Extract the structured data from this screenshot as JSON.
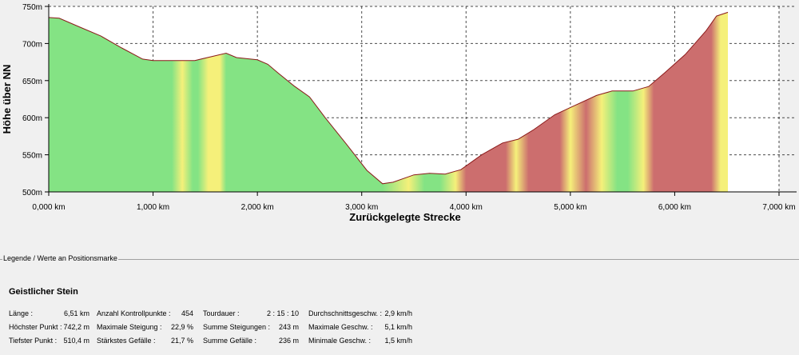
{
  "chart_data": {
    "type": "area",
    "xlabel": "Zurückgelegte Strecke",
    "ylabel": "Höhe über NN",
    "xlim": [
      0,
      7000
    ],
    "ylim": [
      500,
      750
    ],
    "x_ticks": [
      0,
      1000,
      2000,
      3000,
      4000,
      5000,
      6000,
      7000
    ],
    "x_tick_labels": [
      "0,000 km",
      "1,000 km",
      "2,000 km",
      "3,000 km",
      "4,000 km",
      "5,000 km",
      "6,000 km",
      "7,000 km"
    ],
    "y_ticks": [
      500,
      550,
      600,
      650,
      700,
      750
    ],
    "y_tick_labels": [
      "500m",
      "550m",
      "600m",
      "650m",
      "700m",
      "750m"
    ],
    "grid": true,
    "profile": [
      [
        0,
        735
      ],
      [
        100,
        734
      ],
      [
        300,
        722
      ],
      [
        500,
        710
      ],
      [
        700,
        694
      ],
      [
        900,
        679
      ],
      [
        1000,
        677
      ],
      [
        1200,
        677
      ],
      [
        1400,
        677
      ],
      [
        1550,
        682
      ],
      [
        1700,
        687
      ],
      [
        1800,
        681
      ],
      [
        2000,
        678
      ],
      [
        2100,
        672
      ],
      [
        2200,
        660
      ],
      [
        2350,
        643
      ],
      [
        2500,
        628
      ],
      [
        2650,
        600
      ],
      [
        2850,
        565
      ],
      [
        3050,
        529
      ],
      [
        3200,
        511
      ],
      [
        3300,
        513
      ],
      [
        3500,
        523
      ],
      [
        3650,
        525
      ],
      [
        3800,
        524
      ],
      [
        3950,
        530
      ],
      [
        4150,
        550
      ],
      [
        4350,
        566
      ],
      [
        4500,
        571
      ],
      [
        4650,
        584
      ],
      [
        4850,
        604
      ],
      [
        5050,
        617
      ],
      [
        5250,
        630
      ],
      [
        5400,
        636
      ],
      [
        5600,
        636
      ],
      [
        5750,
        642
      ],
      [
        5900,
        660
      ],
      [
        6100,
        685
      ],
      [
        6300,
        717
      ],
      [
        6400,
        737
      ],
      [
        6510,
        742
      ]
    ],
    "gradient_colors": {
      "flat": "#84e384",
      "moderate": "#f5f07a",
      "steep": "#cc6e6e"
    },
    "line_color": "#8b1a1a"
  },
  "legend": {
    "caption": "Legende / Werte an Positionsmarke",
    "tour_name": "Geistlicher Stein",
    "stats": [
      {
        "label": "Länge :",
        "value": "6,51 km"
      },
      {
        "label": "Höchster Punkt :",
        "value": "742,2 m"
      },
      {
        "label": "Tiefster Punkt :",
        "value": "510,4 m"
      },
      {
        "label": "Anzahl Kontrollpunkte :",
        "value": "454"
      },
      {
        "label": "Maximale Steigung :",
        "value": "22,9 %"
      },
      {
        "label": "Stärkstes Gefälle :",
        "value": "21,7 %"
      },
      {
        "label": "Tourdauer :",
        "value": "2 : 15 : 10"
      },
      {
        "label": "Summe Steigungen :",
        "value": "243 m"
      },
      {
        "label": "Summe Gefälle :",
        "value": "236 m"
      },
      {
        "label": "Durchschnittsgeschw. :",
        "value": "2,9 km/h"
      },
      {
        "label": "Maximale Geschw. :",
        "value": "5,1 km/h"
      },
      {
        "label": "Minimale Geschw. :",
        "value": "1,5 km/h"
      }
    ]
  }
}
